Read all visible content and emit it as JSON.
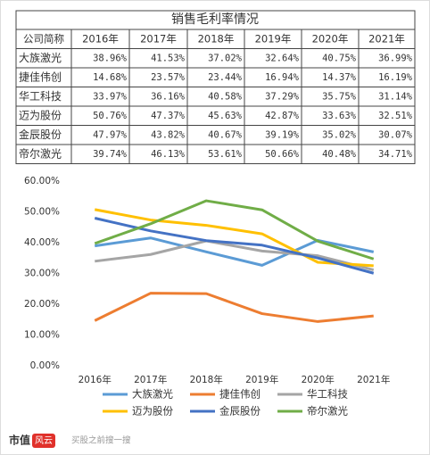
{
  "table": {
    "title": "销售毛利率情况",
    "header": [
      "公司简称",
      "2016年",
      "2017年",
      "2018年",
      "2019年",
      "2020年",
      "2021年"
    ],
    "rows": [
      [
        "大族激光",
        "38.96%",
        "41.53%",
        "37.02%",
        "32.64%",
        "40.75%",
        "36.99%"
      ],
      [
        "捷佳伟创",
        "14.68%",
        "23.57%",
        "23.44%",
        "16.94%",
        "14.37%",
        "16.19%"
      ],
      [
        "华工科技",
        "33.97%",
        "36.16%",
        "40.58%",
        "37.29%",
        "35.75%",
        "31.14%"
      ],
      [
        "迈为股份",
        "50.76%",
        "47.37%",
        "45.63%",
        "42.87%",
        "33.63%",
        "32.51%"
      ],
      [
        "金辰股份",
        "47.97%",
        "43.82%",
        "40.67%",
        "39.19%",
        "35.02%",
        "30.07%"
      ],
      [
        "帝尔激光",
        "39.74%",
        "46.13%",
        "53.61%",
        "50.66%",
        "40.48%",
        "34.71%"
      ]
    ]
  },
  "chart_data": {
    "type": "line",
    "categories": [
      "2016年",
      "2017年",
      "2018年",
      "2019年",
      "2020年",
      "2021年"
    ],
    "series": [
      {
        "name": "大族激光",
        "color": "#5b9bd5",
        "values": [
          38.96,
          41.53,
          37.02,
          32.64,
          40.75,
          36.99
        ]
      },
      {
        "name": "捷佳伟创",
        "color": "#ed7d31",
        "values": [
          14.68,
          23.57,
          23.44,
          16.94,
          14.37,
          16.19
        ]
      },
      {
        "name": "华工科技",
        "color": "#a5a5a5",
        "values": [
          33.97,
          36.16,
          40.58,
          37.29,
          35.75,
          31.14
        ]
      },
      {
        "name": "迈为股份",
        "color": "#ffc000",
        "values": [
          50.76,
          47.37,
          45.63,
          42.87,
          33.63,
          32.51
        ]
      },
      {
        "name": "金辰股份",
        "color": "#4472c4",
        "values": [
          47.97,
          43.82,
          40.67,
          39.19,
          35.02,
          30.07
        ]
      },
      {
        "name": "帝尔激光",
        "color": "#70ad47",
        "values": [
          39.74,
          46.13,
          53.61,
          50.66,
          40.48,
          34.71
        ]
      }
    ],
    "ylim": [
      0,
      60
    ],
    "yticks": [
      {
        "value": 0,
        "label": "0.00%"
      },
      {
        "value": 10,
        "label": "10.00%"
      },
      {
        "value": 20,
        "label": "20.00%"
      },
      {
        "value": 30,
        "label": "30.00%"
      },
      {
        "value": 40,
        "label": "40.00%"
      },
      {
        "value": 50,
        "label": "50.00%"
      },
      {
        "value": 60,
        "label": "60.00%"
      }
    ]
  },
  "footer": {
    "brand": "市值",
    "logo": "风云",
    "slogan": "买股之前搜一搜"
  }
}
